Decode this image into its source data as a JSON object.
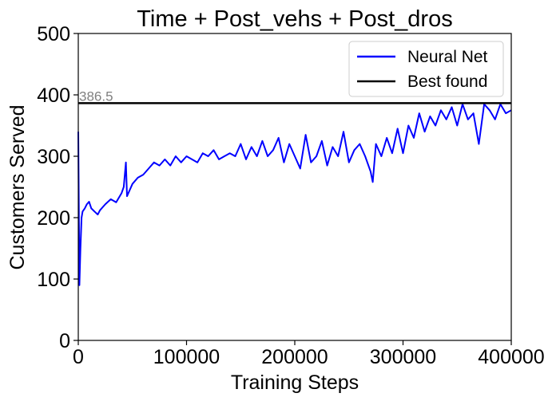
{
  "chart_data": {
    "type": "line",
    "title": "Time + Post_vehs + Post_dros",
    "xlabel": "Training Steps",
    "ylabel": "Customers Served",
    "xlim": [
      0,
      400000
    ],
    "ylim": [
      0,
      500
    ],
    "x_ticks": [
      0,
      100000,
      200000,
      300000,
      400000
    ],
    "x_tick_labels": [
      "0",
      "100000",
      "200000",
      "300000",
      "400000"
    ],
    "y_ticks": [
      0,
      100,
      200,
      300,
      400,
      500
    ],
    "y_tick_labels": [
      "0",
      "100",
      "200",
      "300",
      "400",
      "500"
    ],
    "grid": false,
    "legend_position": "top-right",
    "series": [
      {
        "name": "Neural Net",
        "color": "#0000ff",
        "x": [
          0,
          1000,
          2000,
          3000,
          4000,
          6000,
          8000,
          10000,
          12000,
          15000,
          18000,
          20000,
          25000,
          30000,
          35000,
          40000,
          42000,
          44000,
          45000,
          50000,
          55000,
          60000,
          65000,
          70000,
          75000,
          80000,
          85000,
          90000,
          95000,
          100000,
          105000,
          110000,
          115000,
          120000,
          125000,
          130000,
          135000,
          140000,
          145000,
          150000,
          155000,
          160000,
          165000,
          170000,
          175000,
          180000,
          185000,
          190000,
          195000,
          200000,
          205000,
          210000,
          215000,
          220000,
          225000,
          230000,
          235000,
          240000,
          245000,
          250000,
          255000,
          260000,
          265000,
          270000,
          272000,
          275000,
          280000,
          285000,
          290000,
          295000,
          300000,
          305000,
          310000,
          315000,
          320000,
          325000,
          330000,
          335000,
          340000,
          345000,
          350000,
          355000,
          360000,
          365000,
          370000,
          375000,
          380000,
          385000,
          390000,
          395000,
          400000
        ],
        "y": [
          340,
          90,
          150,
          200,
          210,
          215,
          222,
          226,
          215,
          210,
          205,
          212,
          222,
          230,
          225,
          240,
          250,
          290,
          235,
          255,
          265,
          270,
          280,
          290,
          285,
          295,
          285,
          300,
          290,
          300,
          295,
          290,
          305,
          300,
          310,
          295,
          300,
          305,
          300,
          320,
          295,
          315,
          300,
          325,
          300,
          310,
          330,
          290,
          320,
          300,
          280,
          335,
          290,
          300,
          325,
          285,
          315,
          300,
          340,
          290,
          310,
          320,
          300,
          275,
          258,
          320,
          300,
          330,
          305,
          345,
          305,
          350,
          330,
          370,
          340,
          365,
          350,
          375,
          360,
          380,
          350,
          385,
          360,
          370,
          320,
          385,
          375,
          360,
          385,
          370,
          375
        ]
      },
      {
        "name": "Best found",
        "color": "#000000",
        "x": [
          0,
          400000
        ],
        "y": [
          386.5,
          386.5
        ]
      }
    ],
    "annotations": [
      {
        "text": "386.5",
        "x": 0,
        "y": 386.5,
        "color": "#808080"
      }
    ]
  }
}
